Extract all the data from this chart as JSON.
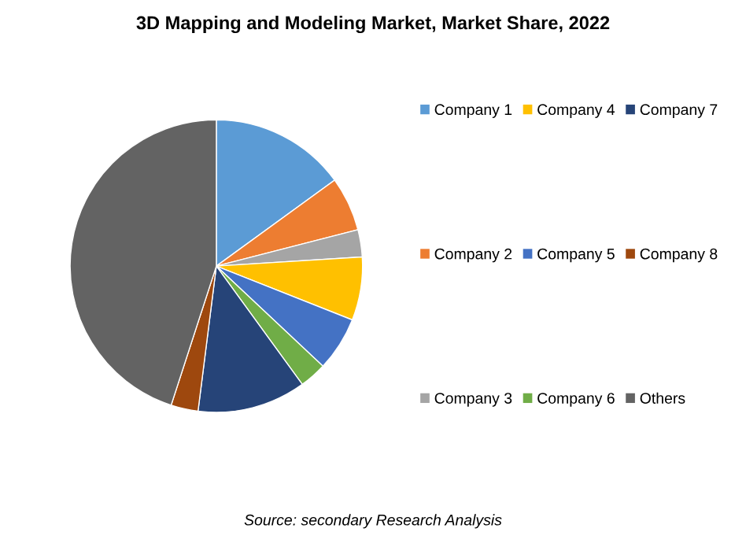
{
  "chart_data": {
    "type": "pie",
    "title": "3D Mapping and Modeling Market, Market Share, 2022",
    "categories": [
      "Company 1",
      "Company 2",
      "Company 3",
      "Company 4",
      "Company 5",
      "Company 6",
      "Company 7",
      "Company 8",
      "Others"
    ],
    "values": [
      15,
      6,
      3,
      7,
      6,
      3,
      12,
      3,
      45
    ],
    "colors": [
      "#5b9bd5",
      "#ed7d31",
      "#a5a5a5",
      "#ffc000",
      "#4472c4",
      "#70ad47",
      "#264478",
      "#9e480e",
      "#636363"
    ],
    "legend": "right",
    "annotations": [
      "Source: secondary Research Analysis"
    ]
  }
}
